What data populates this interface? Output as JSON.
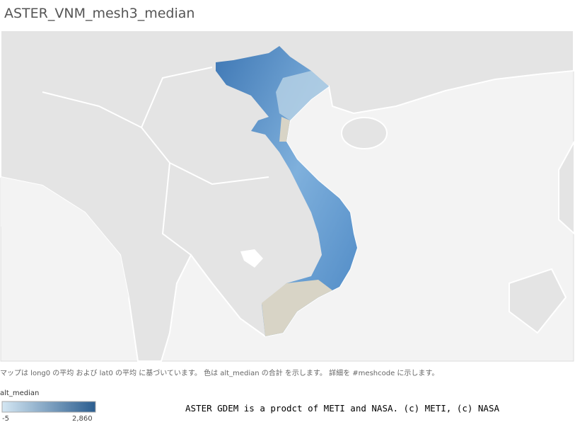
{
  "header": {
    "title": "ASTER_VNM_mesh3_median"
  },
  "caption": "マップは long0 の平均 および lat0 の平均 に基づいています。 色は alt_median の合計 を示します。 詳細を #meshcode に示します。",
  "legend": {
    "title": "alt_median",
    "min": -5,
    "max": {
      "value": 2860,
      "label": "2,860"
    },
    "colors": [
      "#d4e7f3",
      "#2b5d8f"
    ]
  },
  "credit": "ASTER GDEM is a prodct of METI and NASA. (c) METI, (c) NASA"
}
